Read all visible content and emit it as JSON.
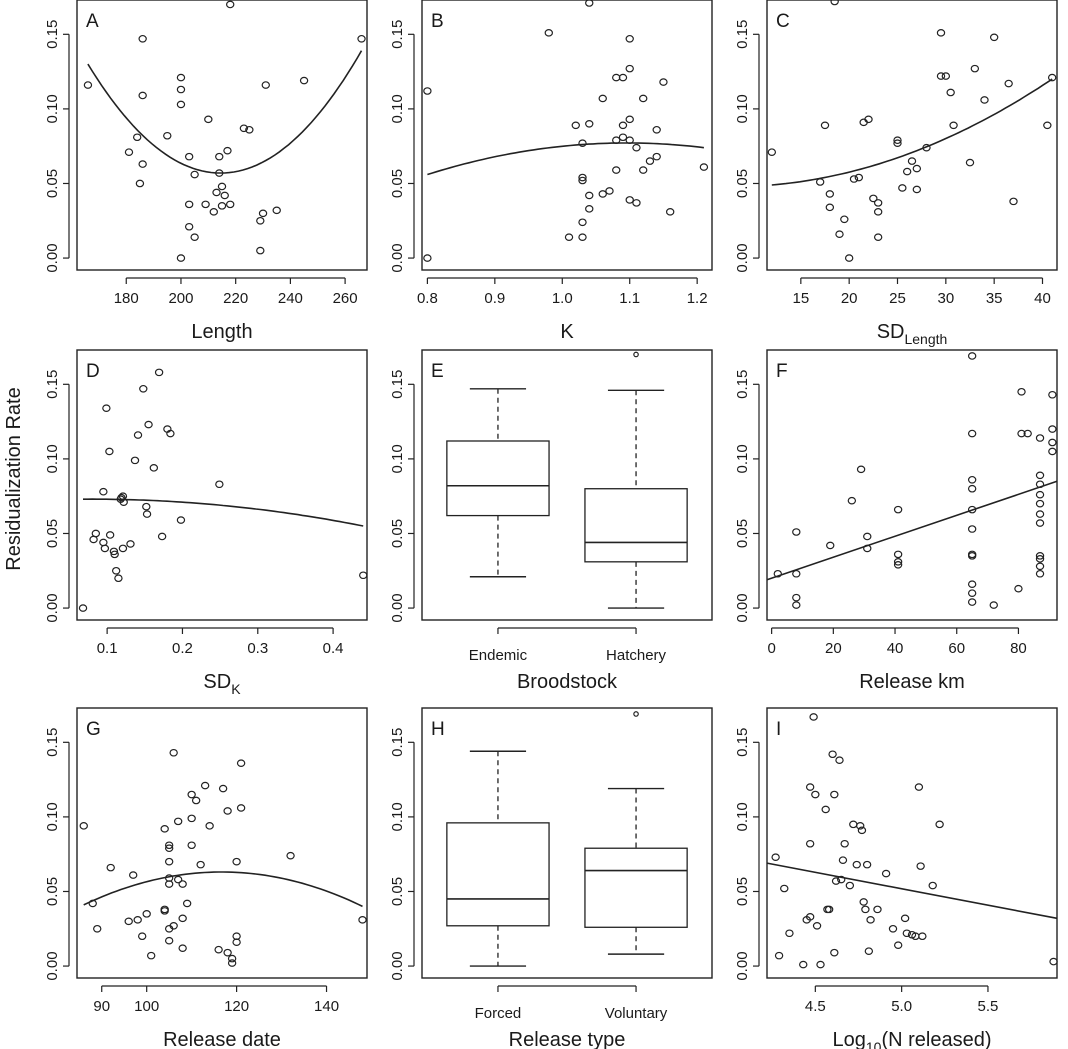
{
  "ylabel": "Residualization Rate",
  "chart_data": [
    {
      "id": "A",
      "type": "scatter",
      "panel_label": "A",
      "xlabel": "Length",
      "xticks": [
        180,
        200,
        220,
        240,
        260
      ],
      "xlim": [
        162,
        268
      ],
      "ylim": [
        -0.008,
        0.173
      ],
      "yticks": [
        "0.00",
        "0.05",
        "0.10",
        "0.15"
      ],
      "yticks_values": [
        0,
        0.05,
        0.1,
        0.15
      ],
      "x": [
        166,
        186,
        186,
        184,
        186,
        181,
        185,
        195,
        200,
        200,
        200,
        203,
        205,
        203,
        205,
        210,
        209,
        214,
        214,
        215,
        216,
        218,
        217,
        218,
        213,
        212,
        215,
        223,
        225,
        231,
        230,
        229,
        229,
        235,
        245,
        266,
        200,
        203
      ],
      "y": [
        0.116,
        0.147,
        0.109,
        0.081,
        0.063,
        0.071,
        0.05,
        0.082,
        0.121,
        0.113,
        0.103,
        0.068,
        0.056,
        0.036,
        0.014,
        0.093,
        0.036,
        0.068,
        0.057,
        0.048,
        0.042,
        0.036,
        0.072,
        0.17,
        0.044,
        0.031,
        0.035,
        0.087,
        0.086,
        0.116,
        0.03,
        0.025,
        0.005,
        0.032,
        0.119,
        0.147,
        0.0,
        0.021
      ],
      "fit": {
        "kind": "quadratic",
        "x": [
          166,
          215,
          266
        ],
        "y": [
          0.13,
          0.057,
          0.139
        ]
      }
    },
    {
      "id": "B",
      "type": "scatter",
      "panel_label": "B",
      "xlabel": "K",
      "xticks": [
        "0.8",
        "0.9",
        "1.0",
        "1.1",
        "1.2"
      ],
      "xticks_values": [
        0.8,
        0.9,
        1.0,
        1.1,
        1.2
      ],
      "xlim": [
        0.792,
        1.222
      ],
      "ylim": [
        -0.008,
        0.173
      ],
      "yticks": [
        "0.00",
        "0.05",
        "0.10",
        "0.15"
      ],
      "yticks_values": [
        0,
        0.05,
        0.1,
        0.15
      ],
      "x": [
        0.8,
        0.8,
        1.04,
        0.98,
        1.1,
        1.1,
        1.09,
        1.15,
        1.06,
        1.12,
        1.1,
        1.09,
        1.02,
        1.04,
        1.08,
        1.03,
        1.09,
        1.1,
        1.11,
        1.13,
        1.14,
        1.08,
        1.12,
        1.1,
        1.03,
        1.03,
        1.06,
        1.07,
        1.04,
        1.04,
        1.03,
        1.11,
        1.16,
        1.01,
        1.03,
        1.21,
        1.14,
        1.08
      ],
      "y": [
        0.112,
        0.0,
        0.171,
        0.151,
        0.147,
        0.127,
        0.121,
        0.118,
        0.107,
        0.107,
        0.093,
        0.089,
        0.089,
        0.09,
        0.079,
        0.077,
        0.081,
        0.079,
        0.074,
        0.065,
        0.068,
        0.059,
        0.059,
        0.039,
        0.054,
        0.052,
        0.043,
        0.045,
        0.042,
        0.033,
        0.024,
        0.037,
        0.031,
        0.014,
        0.014,
        0.061,
        0.086,
        0.121
      ],
      "fit": {
        "kind": "quadratic",
        "x": [
          0.8,
          1.07,
          1.21
        ],
        "y": [
          0.056,
          0.077,
          0.074
        ]
      }
    },
    {
      "id": "C",
      "type": "scatter",
      "panel_label": "C",
      "xlabel": "SD",
      "xlabel_sub": "Length",
      "xticks": [
        15,
        20,
        25,
        30,
        35,
        40
      ],
      "xlim": [
        11.5,
        41.5
      ],
      "ylim": [
        -0.008,
        0.173
      ],
      "yticks": [
        "0.00",
        "0.05",
        "0.10",
        "0.15"
      ],
      "yticks_values": [
        0,
        0.05,
        0.1,
        0.15
      ],
      "x": [
        12,
        18.5,
        17.5,
        21.5,
        22,
        17,
        18,
        18,
        19,
        20,
        21,
        19.5,
        23,
        23,
        23,
        25,
        25,
        25.5,
        26,
        26.5,
        27,
        27,
        28,
        29.5,
        30,
        30.5,
        30.8,
        32.5,
        33,
        34,
        35,
        36.5,
        37,
        40.5,
        41,
        29.5,
        20.5,
        22.5
      ],
      "y": [
        0.071,
        0.172,
        0.089,
        0.091,
        0.093,
        0.051,
        0.043,
        0.034,
        0.016,
        0.0,
        0.054,
        0.026,
        0.031,
        0.037,
        0.014,
        0.077,
        0.079,
        0.047,
        0.058,
        0.065,
        0.06,
        0.046,
        0.074,
        0.151,
        0.122,
        0.111,
        0.089,
        0.064,
        0.127,
        0.106,
        0.148,
        0.117,
        0.038,
        0.089,
        0.121,
        0.122,
        0.053,
        0.04
      ],
      "fit": {
        "kind": "quadratic",
        "x": [
          12,
          27,
          41
        ],
        "y": [
          0.049,
          0.072,
          0.12
        ]
      }
    },
    {
      "id": "D",
      "type": "scatter",
      "panel_label": "D",
      "xlabel": "SD",
      "xlabel_sub": "K",
      "xticks": [
        "0.1",
        "0.2",
        "0.3",
        "0.4"
      ],
      "xticks_values": [
        0.1,
        0.2,
        0.3,
        0.4
      ],
      "xlim": [
        0.06,
        0.445
      ],
      "ylim": [
        -0.008,
        0.173
      ],
      "yticks": [
        "0.00",
        "0.05",
        "0.10",
        "0.15"
      ],
      "yticks_values": [
        0,
        0.05,
        0.1,
        0.15
      ],
      "x": [
        0.068,
        0.082,
        0.085,
        0.095,
        0.099,
        0.097,
        0.103,
        0.104,
        0.11,
        0.112,
        0.115,
        0.118,
        0.119,
        0.122,
        0.121,
        0.131,
        0.137,
        0.141,
        0.148,
        0.152,
        0.153,
        0.155,
        0.162,
        0.169,
        0.173,
        0.18,
        0.184,
        0.198,
        0.249,
        0.44,
        0.095,
        0.109,
        0.121
      ],
      "y": [
        0.0,
        0.046,
        0.05,
        0.078,
        0.134,
        0.04,
        0.105,
        0.049,
        0.036,
        0.025,
        0.02,
        0.073,
        0.074,
        0.071,
        0.04,
        0.043,
        0.099,
        0.116,
        0.147,
        0.068,
        0.063,
        0.123,
        0.094,
        0.158,
        0.048,
        0.12,
        0.117,
        0.059,
        0.083,
        0.022,
        0.044,
        0.038,
        0.075
      ],
      "fit": {
        "kind": "quadratic",
        "x": [
          0.068,
          0.2,
          0.44
        ],
        "y": [
          0.073,
          0.071,
          0.055
        ]
      }
    },
    {
      "id": "E",
      "type": "boxplot",
      "panel_label": "E",
      "xlabel": "Broodstock",
      "categories": [
        "Endemic",
        "Hatchery"
      ],
      "xlim": [
        0.45,
        2.55
      ],
      "ylim": [
        -0.008,
        0.173
      ],
      "yticks": [
        "0.00",
        "0.05",
        "0.10",
        "0.15"
      ],
      "yticks_values": [
        0,
        0.05,
        0.1,
        0.15
      ],
      "boxes": [
        {
          "min": 0.021,
          "q1": 0.062,
          "median": 0.082,
          "q3": 0.112,
          "max": 0.147,
          "outliers": []
        },
        {
          "min": 0.0,
          "q1": 0.031,
          "median": 0.044,
          "q3": 0.08,
          "max": 0.146,
          "outliers": [
            0.17
          ]
        }
      ]
    },
    {
      "id": "F",
      "type": "scatter",
      "panel_label": "F",
      "xlabel": "Release km",
      "xticks": [
        0,
        20,
        40,
        60,
        80
      ],
      "xlim": [
        -1.5,
        92.5
      ],
      "ylim": [
        -0.008,
        0.173
      ],
      "yticks": [
        "0.00",
        "0.05",
        "0.10",
        "0.15"
      ],
      "yticks_values": [
        0,
        0.05,
        0.1,
        0.15
      ],
      "x": [
        2,
        8,
        8,
        8,
        8,
        19,
        26,
        29,
        31,
        31,
        41,
        41,
        41,
        41,
        65,
        65,
        65,
        65,
        65,
        65,
        65,
        65,
        65,
        65,
        65,
        72,
        80,
        81,
        81,
        83,
        87,
        87,
        87,
        87,
        87,
        87,
        87,
        87,
        87,
        87,
        87,
        91,
        91,
        91,
        91
      ],
      "y": [
        0.023,
        0.051,
        0.023,
        0.007,
        0.002,
        0.042,
        0.072,
        0.093,
        0.048,
        0.04,
        0.066,
        0.036,
        0.031,
        0.029,
        0.169,
        0.117,
        0.086,
        0.08,
        0.066,
        0.053,
        0.036,
        0.035,
        0.016,
        0.01,
        0.004,
        0.002,
        0.013,
        0.145,
        0.117,
        0.117,
        0.114,
        0.089,
        0.083,
        0.076,
        0.07,
        0.063,
        0.057,
        0.035,
        0.033,
        0.028,
        0.023,
        0.143,
        0.12,
        0.111,
        0.105
      ],
      "fit": {
        "kind": "linear",
        "x": [
          -1.5,
          92.5
        ],
        "y": [
          0.019,
          0.085
        ]
      }
    },
    {
      "id": "G",
      "type": "scatter",
      "panel_label": "G",
      "xlabel": "Release date",
      "xticks": [
        90,
        100,
        120,
        140
      ],
      "xlim": [
        84.5,
        149
      ],
      "ylim": [
        -0.008,
        0.173
      ],
      "yticks": [
        "0.00",
        "0.05",
        "0.10",
        "0.15"
      ],
      "yticks_values": [
        0,
        0.05,
        0.1,
        0.15
      ],
      "x": [
        86,
        88,
        89,
        92,
        97,
        98,
        96,
        99,
        100,
        101,
        104,
        105,
        105,
        105,
        105,
        104,
        105,
        105,
        105,
        106,
        107,
        107,
        108,
        108,
        108,
        109,
        110,
        110,
        110,
        111,
        112,
        113,
        114,
        117,
        118,
        118,
        119,
        119,
        120,
        120,
        120,
        121,
        121,
        132,
        148,
        106,
        104,
        116
      ],
      "y": [
        0.094,
        0.042,
        0.025,
        0.066,
        0.061,
        0.031,
        0.03,
        0.02,
        0.035,
        0.007,
        0.092,
        0.081,
        0.079,
        0.07,
        0.055,
        0.038,
        0.025,
        0.017,
        0.059,
        0.143,
        0.097,
        0.058,
        0.055,
        0.032,
        0.012,
        0.042,
        0.115,
        0.099,
        0.081,
        0.111,
        0.068,
        0.121,
        0.094,
        0.119,
        0.104,
        0.009,
        0.005,
        0.002,
        0.016,
        0.02,
        0.07,
        0.136,
        0.106,
        0.074,
        0.031,
        0.027,
        0.037,
        0.011
      ],
      "fit": {
        "kind": "quadratic",
        "x": [
          86,
          115,
          148
        ],
        "y": [
          0.041,
          0.063,
          0.04
        ]
      }
    },
    {
      "id": "H",
      "type": "boxplot",
      "panel_label": "H",
      "xlabel": "Release type",
      "categories": [
        "Forced",
        "Voluntary"
      ],
      "xlim": [
        0.45,
        2.55
      ],
      "ylim": [
        -0.008,
        0.173
      ],
      "yticks": [
        "0.00",
        "0.05",
        "0.10",
        "0.15"
      ],
      "yticks_values": [
        0,
        0.05,
        0.1,
        0.15
      ],
      "boxes": [
        {
          "min": 0.0,
          "q1": 0.027,
          "median": 0.045,
          "q3": 0.096,
          "max": 0.144,
          "outliers": []
        },
        {
          "min": 0.008,
          "q1": 0.026,
          "median": 0.064,
          "q3": 0.079,
          "max": 0.119,
          "outliers": [
            0.169
          ]
        }
      ]
    },
    {
      "id": "I",
      "type": "scatter",
      "panel_label": "I",
      "xlabel": "Log",
      "xlabel_sub": "10",
      "xlabel_suffix": "(N released)",
      "xticks": [
        "4.5",
        "5.0",
        "5.5"
      ],
      "xticks_values": [
        4.5,
        5.0,
        5.5
      ],
      "xlim": [
        4.22,
        5.9
      ],
      "ylim": [
        -0.008,
        0.173
      ],
      "yticks": [
        "0.00",
        "0.05",
        "0.10",
        "0.15"
      ],
      "yticks_values": [
        0,
        0.05,
        0.1,
        0.15
      ],
      "x": [
        4.27,
        4.29,
        4.32,
        4.35,
        4.43,
        4.45,
        4.47,
        4.47,
        4.47,
        4.49,
        4.5,
        4.51,
        4.53,
        4.56,
        4.57,
        4.58,
        4.6,
        4.61,
        4.61,
        4.62,
        4.64,
        4.65,
        4.66,
        4.67,
        4.7,
        4.72,
        4.74,
        4.76,
        4.77,
        4.78,
        4.79,
        4.8,
        4.81,
        4.82,
        4.86,
        4.91,
        4.95,
        4.98,
        5.02,
        5.03,
        5.06,
        5.08,
        5.1,
        5.11,
        5.12,
        5.18,
        5.22,
        5.88
      ],
      "y": [
        0.073,
        0.007,
        0.052,
        0.022,
        0.001,
        0.031,
        0.12,
        0.082,
        0.033,
        0.167,
        0.115,
        0.027,
        0.001,
        0.105,
        0.038,
        0.038,
        0.142,
        0.115,
        0.009,
        0.057,
        0.138,
        0.058,
        0.071,
        0.082,
        0.054,
        0.095,
        0.068,
        0.094,
        0.091,
        0.043,
        0.038,
        0.068,
        0.01,
        0.031,
        0.038,
        0.062,
        0.025,
        0.014,
        0.032,
        0.022,
        0.021,
        0.02,
        0.12,
        0.067,
        0.02,
        0.054,
        0.095,
        0.003
      ],
      "fit": {
        "kind": "linear",
        "x": [
          4.22,
          5.9
        ],
        "y": [
          0.069,
          0.032
        ]
      }
    }
  ]
}
